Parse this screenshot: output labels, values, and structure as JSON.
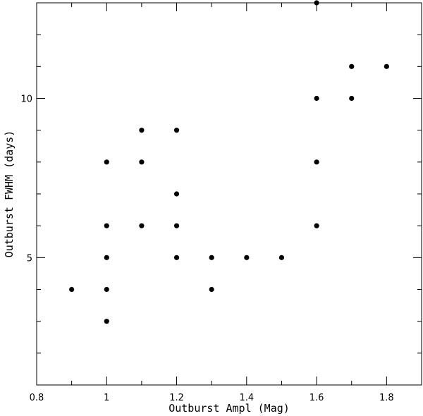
{
  "chart_data": {
    "type": "scatter",
    "title": "",
    "xlabel": "Outburst Ampl (Mag)",
    "ylabel": "Outburst FWHM (days)",
    "xlim": [
      0.8,
      1.9
    ],
    "ylim": [
      1,
      13
    ],
    "x_major_ticks": [
      0.8,
      1.0,
      1.2,
      1.4,
      1.6,
      1.8
    ],
    "x_tick_labels": [
      "0.8",
      "1",
      "1.2",
      "1.4",
      "1.6",
      "1.8"
    ],
    "x_minor_ticks": [
      0.9,
      1.1,
      1.3,
      1.5,
      1.7
    ],
    "y_major_ticks": [
      5,
      10
    ],
    "y_tick_labels": [
      "5",
      "10"
    ],
    "y_minor_ticks": [
      2,
      3,
      4,
      6,
      7,
      8,
      9,
      11,
      12
    ],
    "grid": false,
    "legend": "none",
    "points": [
      {
        "x": 0.9,
        "y": 4
      },
      {
        "x": 1.0,
        "y": 3
      },
      {
        "x": 1.0,
        "y": 4
      },
      {
        "x": 1.0,
        "y": 5
      },
      {
        "x": 1.0,
        "y": 6
      },
      {
        "x": 1.0,
        "y": 8
      },
      {
        "x": 1.1,
        "y": 6
      },
      {
        "x": 1.1,
        "y": 8
      },
      {
        "x": 1.1,
        "y": 9
      },
      {
        "x": 1.2,
        "y": 5
      },
      {
        "x": 1.2,
        "y": 6
      },
      {
        "x": 1.2,
        "y": 7
      },
      {
        "x": 1.2,
        "y": 9
      },
      {
        "x": 1.3,
        "y": 4
      },
      {
        "x": 1.3,
        "y": 5
      },
      {
        "x": 1.4,
        "y": 5
      },
      {
        "x": 1.5,
        "y": 5
      },
      {
        "x": 1.6,
        "y": 6
      },
      {
        "x": 1.6,
        "y": 8
      },
      {
        "x": 1.6,
        "y": 10
      },
      {
        "x": 1.6,
        "y": 13
      },
      {
        "x": 1.7,
        "y": 10
      },
      {
        "x": 1.7,
        "y": 11
      },
      {
        "x": 1.8,
        "y": 11
      }
    ],
    "colors": {
      "marker": "#000000",
      "axis": "#000000",
      "background": "#ffffff"
    }
  }
}
